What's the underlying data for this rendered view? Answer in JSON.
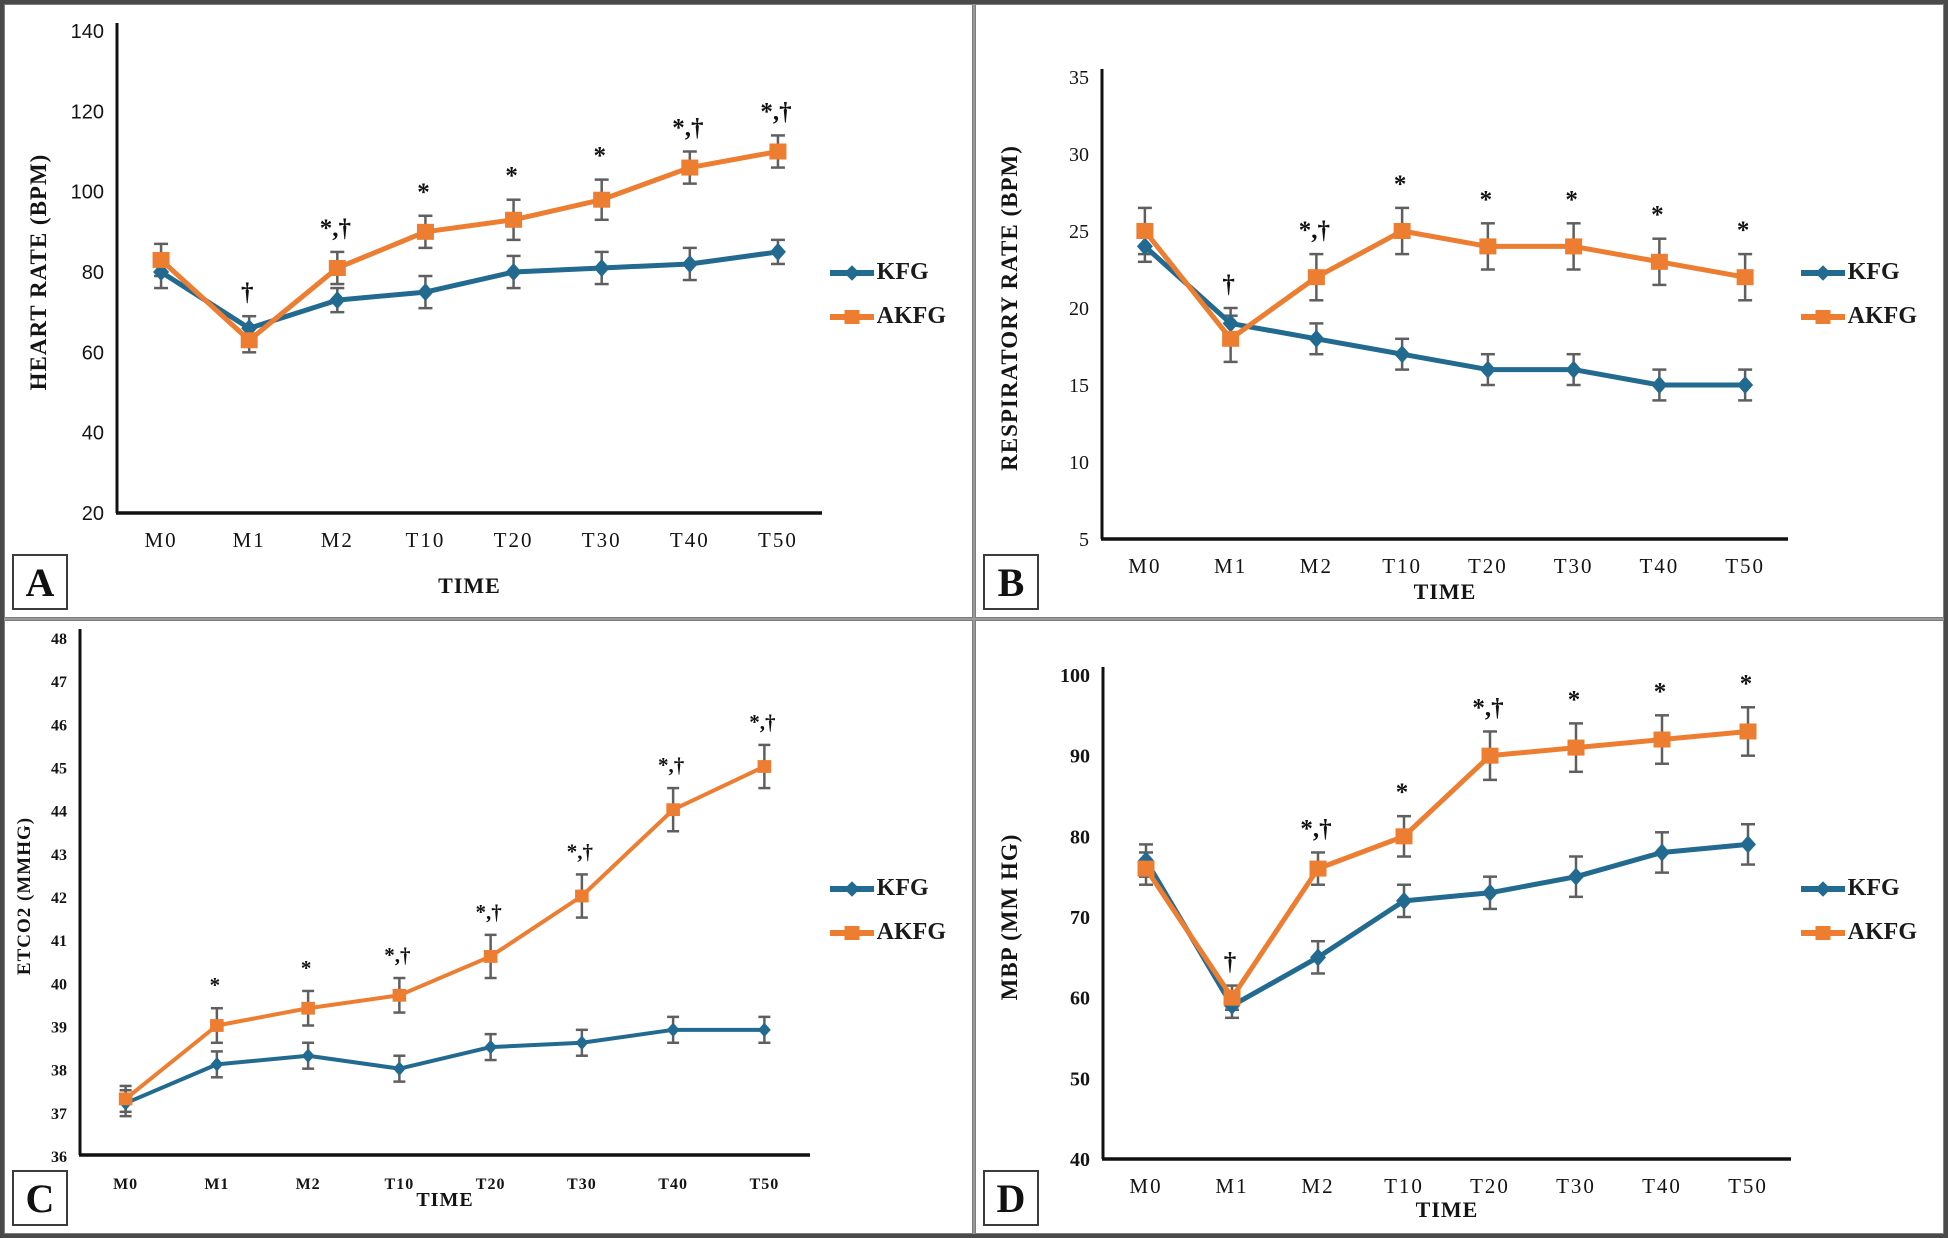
{
  "legend": {
    "kfg": "KFG",
    "akfg": "AKFG"
  },
  "colors": {
    "kfg": "#226A8F",
    "akfg": "#ED7D31",
    "error_bar": "#5F5F5F",
    "axis": "#111111"
  },
  "chart_data": [
    {
      "id": "A",
      "panel_label": "A",
      "type": "line",
      "xlabel": "TIME",
      "ylabel": "HEART RATE (BPM)",
      "categories": [
        "M0",
        "M1",
        "M2",
        "T10",
        "T20",
        "T30",
        "T40",
        "T50"
      ],
      "ylim": [
        20,
        140
      ],
      "ytick_step": 20,
      "grid": false,
      "legend_position": "right",
      "series": [
        {
          "name": "KFG",
          "marker": "diamond",
          "color_key": "kfg",
          "values": [
            80,
            66,
            73,
            75,
            80,
            81,
            82,
            85
          ],
          "errors": [
            4,
            3,
            3,
            4,
            4,
            4,
            4,
            3
          ]
        },
        {
          "name": "AKFG",
          "marker": "square",
          "color_key": "akfg",
          "values": [
            83,
            63,
            81,
            90,
            93,
            98,
            106,
            110
          ],
          "errors": [
            4,
            3,
            4,
            4,
            5,
            5,
            4,
            4
          ]
        }
      ],
      "sig_markers": [
        "",
        "†",
        "*,†",
        "*",
        "*",
        "*",
        "*,†",
        "*,†"
      ]
    },
    {
      "id": "B",
      "panel_label": "B",
      "type": "line",
      "xlabel": "TIME",
      "ylabel": "RESPIRATORY RATE (BPM)",
      "categories": [
        "M0",
        "M1",
        "M2",
        "T10",
        "T20",
        "T30",
        "T40",
        "T50"
      ],
      "ylim": [
        5,
        35
      ],
      "ytick_step": 5,
      "grid": false,
      "legend_position": "right",
      "series": [
        {
          "name": "KFG",
          "marker": "diamond",
          "color_key": "kfg",
          "values": [
            24,
            19,
            18,
            17,
            16,
            16,
            15,
            15
          ],
          "errors": [
            1,
            1,
            1,
            1,
            1,
            1,
            1,
            1
          ]
        },
        {
          "name": "AKFG",
          "marker": "square",
          "color_key": "akfg",
          "values": [
            25,
            18,
            22,
            25,
            24,
            24,
            23,
            22
          ],
          "errors": [
            1.5,
            1.5,
            1.5,
            1.5,
            1.5,
            1.5,
            1.5,
            1.5
          ]
        }
      ],
      "sig_markers": [
        "",
        "†",
        "*,†",
        "*",
        "*",
        "*",
        "*",
        "*"
      ]
    },
    {
      "id": "C",
      "panel_label": "C",
      "type": "line",
      "xlabel": "TIME",
      "ylabel": "ETCO2 (MMHG)",
      "categories": [
        "M0",
        "M1",
        "M2",
        "T10",
        "T20",
        "T30",
        "T40",
        "T50"
      ],
      "ylim": [
        36,
        48
      ],
      "ytick_step": 1,
      "grid": false,
      "legend_position": "right",
      "series": [
        {
          "name": "KFG",
          "marker": "diamond",
          "color_key": "kfg",
          "values": [
            37.2,
            38.1,
            38.3,
            38.0,
            38.5,
            38.6,
            38.9,
            38.9
          ],
          "errors": [
            0.3,
            0.3,
            0.3,
            0.3,
            0.3,
            0.3,
            0.3,
            0.3
          ]
        },
        {
          "name": "AKFG",
          "marker": "square",
          "color_key": "akfg",
          "values": [
            37.3,
            39.0,
            39.4,
            39.7,
            40.6,
            42.0,
            44.0,
            45.0
          ],
          "errors": [
            0.3,
            0.4,
            0.4,
            0.4,
            0.5,
            0.5,
            0.5,
            0.5
          ]
        }
      ],
      "sig_markers": [
        "",
        "*",
        "*",
        "*,†",
        "*,†",
        "*,†",
        "*,†",
        "*,†"
      ]
    },
    {
      "id": "D",
      "panel_label": "D",
      "type": "line",
      "xlabel": "TIME",
      "ylabel": "MBP (MM HG)",
      "categories": [
        "M0",
        "M1",
        "M2",
        "T10",
        "T20",
        "T30",
        "T40",
        "T50"
      ],
      "ylim": [
        40,
        100
      ],
      "ytick_step": 10,
      "grid": false,
      "legend_position": "right",
      "series": [
        {
          "name": "KFG",
          "marker": "diamond",
          "color_key": "kfg",
          "values": [
            77,
            59,
            65,
            72,
            73,
            75,
            78,
            79
          ],
          "errors": [
            2,
            1.5,
            2,
            2,
            2,
            2.5,
            2.5,
            2.5
          ]
        },
        {
          "name": "AKFG",
          "marker": "square",
          "color_key": "akfg",
          "values": [
            76,
            60,
            76,
            80,
            90,
            91,
            92,
            93
          ],
          "errors": [
            2,
            1.5,
            2,
            2.5,
            3,
            3,
            3,
            3
          ]
        }
      ],
      "sig_markers": [
        "",
        "†",
        "*,†",
        "*",
        "*,†",
        "*",
        "*",
        "*"
      ]
    }
  ]
}
